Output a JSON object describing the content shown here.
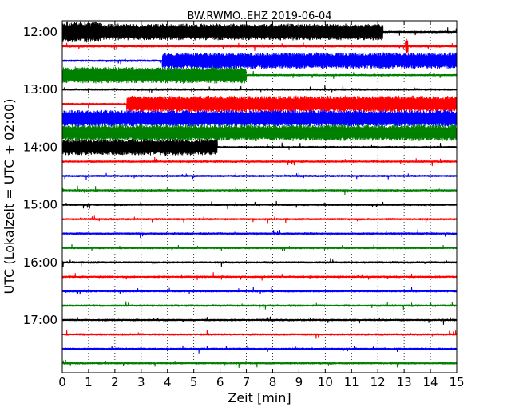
{
  "chart_data": {
    "type": "line",
    "title": "BW.RWMO..EHZ 2019-06-04",
    "xlabel": "Zeit  [min]",
    "ylabel": "UTC (Lokalzeit = UTC + 02:00)",
    "xlim": [
      0,
      15
    ],
    "x_ticks": [
      "0",
      "1",
      "2",
      "3",
      "4",
      "5",
      "6",
      "7",
      "8",
      "9",
      "10",
      "11",
      "12",
      "13",
      "14",
      "15"
    ],
    "y_tick_labels": [
      "12:00",
      "13:00",
      "14:00",
      "15:00",
      "16:00",
      "17:00"
    ],
    "grid": "vertical-dotted",
    "trace_colors": [
      "#000000",
      "#ff0000",
      "#0000ff",
      "#008000"
    ],
    "traces": [
      {
        "start": "12:00",
        "color": "#000000",
        "bursts": [
          [
            0,
            12.2,
            1.0
          ],
          [
            0,
            1.5,
            1.3
          ]
        ]
      },
      {
        "start": "12:15",
        "color": "#ff0000",
        "bursts": [
          [
            13.05,
            13.15,
            1.0
          ]
        ]
      },
      {
        "start": "12:30",
        "color": "#0000ff",
        "bursts": [
          [
            3.8,
            15,
            1.0
          ]
        ]
      },
      {
        "start": "12:45",
        "color": "#008000",
        "bursts": [
          [
            0,
            7.0,
            1.0
          ]
        ]
      },
      {
        "start": "13:00",
        "color": "#000000",
        "bursts": []
      },
      {
        "start": "13:15",
        "color": "#ff0000",
        "bursts": [
          [
            2.45,
            15,
            1.0
          ]
        ]
      },
      {
        "start": "13:30",
        "color": "#0000ff",
        "bursts": [
          [
            0,
            15,
            1.0
          ]
        ]
      },
      {
        "start": "13:45",
        "color": "#008000",
        "bursts": [
          [
            0,
            15,
            1.0
          ]
        ]
      },
      {
        "start": "14:00",
        "color": "#000000",
        "bursts": [
          [
            0,
            5.9,
            1.0
          ]
        ]
      },
      {
        "start": "14:15",
        "color": "#ff0000",
        "bursts": []
      },
      {
        "start": "14:30",
        "color": "#0000ff",
        "bursts": []
      },
      {
        "start": "14:45",
        "color": "#008000",
        "bursts": []
      },
      {
        "start": "15:00",
        "color": "#000000",
        "bursts": []
      },
      {
        "start": "15:15",
        "color": "#ff0000",
        "bursts": []
      },
      {
        "start": "15:30",
        "color": "#0000ff",
        "bursts": []
      },
      {
        "start": "15:45",
        "color": "#008000",
        "bursts": []
      },
      {
        "start": "16:00",
        "color": "#000000",
        "bursts": []
      },
      {
        "start": "16:15",
        "color": "#ff0000",
        "bursts": []
      },
      {
        "start": "16:30",
        "color": "#0000ff",
        "bursts": []
      },
      {
        "start": "16:45",
        "color": "#008000",
        "bursts": []
      },
      {
        "start": "17:00",
        "color": "#000000",
        "bursts": []
      },
      {
        "start": "17:15",
        "color": "#ff0000",
        "bursts": []
      },
      {
        "start": "17:30",
        "color": "#0000ff",
        "bursts": []
      },
      {
        "start": "17:45",
        "color": "#008000",
        "bursts": []
      }
    ]
  }
}
